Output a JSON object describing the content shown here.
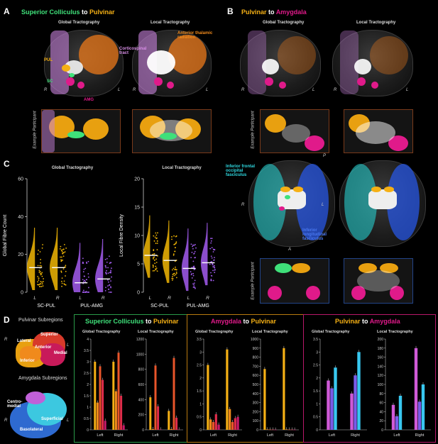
{
  "panelA": {
    "letter": "A",
    "title": {
      "part1": "Superior Colliculus",
      "to": " to ",
      "part2": "Pulvinar"
    },
    "sub_global": "Global Tractography",
    "sub_local": "Local Tractography",
    "ann_atr": "Anterior thalamic radiation",
    "ann_cst": "Corticospinal tract",
    "ann_pul": "PUL",
    "ann_sc": "SC",
    "ann_amg": "AMG",
    "R": "R",
    "L": "L",
    "example": "Example Participant"
  },
  "panelB": {
    "letter": "B",
    "title": {
      "part1": "Pulvinar",
      "to": " to ",
      "part2": "Amygdala"
    },
    "sub_global": "Global Tractography",
    "sub_local": "Local Tractography",
    "ann_ifof": "Inferior frontal occipital fasciculus",
    "ann_ilf": "Inferior longitudinal fasciculus",
    "P": "P",
    "A": "A",
    "R": "R",
    "L": "L",
    "example": "Example Participant"
  },
  "panelC": {
    "letter": "C",
    "colors": {
      "sc_pul": "#f2b705",
      "pul_amg": "#a35cf0"
    }
  },
  "panelD": {
    "letter": "D",
    "pulvinar_title": "Pulvinar Subregions",
    "pulvinar_labels": [
      "Superior",
      "Lateral",
      "Anterior",
      "Medial",
      "Inferior"
    ],
    "amygdala_title": "Amygdala Subregions",
    "amygdala_labels": [
      "Centro-medial",
      "Superficial",
      "Basolateral"
    ],
    "R": "R",
    "L": "L",
    "box1": {
      "part1": "Superior Colliculus",
      "to": " to ",
      "part2": "Pulvinar"
    },
    "box2": {
      "part1": "Amygdala",
      "to": " to ",
      "part2": "Pulvinar"
    },
    "box3": {
      "part1": "Pulvinar",
      "to": " to ",
      "part2": "Amygdala"
    },
    "sub_global": "Global Tractography",
    "sub_local": "Local Tractography"
  },
  "chart_data": [
    {
      "id": "c-global",
      "type": "scatter",
      "title": "Global Tractography",
      "ylabel": "Global Fibre Count",
      "ylim": [
        0,
        60
      ],
      "yticks": [
        0,
        20,
        40,
        60
      ],
      "categories": [
        "L",
        "R",
        "L",
        "R"
      ],
      "groups": [
        "SC-PUL",
        "PUL-AMG"
      ],
      "medians": [
        13,
        13,
        5,
        7
      ]
    },
    {
      "id": "c-local",
      "type": "scatter",
      "title": "Local Tractography",
      "ylabel": "Local Fibre Density",
      "ylim": [
        0,
        20
      ],
      "yticks": [
        0,
        5,
        10,
        15,
        20
      ],
      "categories": [
        "L",
        "R",
        "L",
        "R"
      ],
      "groups": [
        "SC-PUL",
        "PUL-AMG"
      ],
      "medians": [
        6.5,
        5.6,
        4.2,
        5.2
      ]
    },
    {
      "id": "d1g",
      "type": "bar",
      "title": "Global Tractography",
      "ylim": [
        0,
        4
      ],
      "yticks": [
        "0",
        "0.5",
        "1",
        "1.5",
        "2",
        "2.5",
        "3",
        "3.5",
        "4"
      ],
      "categories": [
        "Left",
        "Right"
      ],
      "series": [
        {
          "values": [
            3.0,
            3.0
          ],
          "color": "#f5b015"
        },
        {
          "values": [
            1.2,
            1.7
          ],
          "color": "#f08a1c"
        },
        {
          "values": [
            2.8,
            3.4
          ],
          "color": "#e8552a"
        },
        {
          "values": [
            2.2,
            1.5
          ],
          "color": "#e02c4a"
        },
        {
          "values": [
            0.4,
            0.2
          ],
          "color": "#c81a6a"
        }
      ]
    },
    {
      "id": "d1l",
      "type": "bar",
      "title": "Local Tractography",
      "ylim": [
        0,
        1200
      ],
      "yticks": [
        "0",
        "200",
        "400",
        "600",
        "800",
        "1000",
        "1200"
      ],
      "categories": [
        "Left",
        "Right"
      ],
      "series": [
        {
          "values": [
            430,
            250
          ],
          "color": "#f5b015"
        },
        {
          "values": [
            10,
            10
          ],
          "color": "#f08a1c"
        },
        {
          "values": [
            850,
            950
          ],
          "color": "#e8552a"
        },
        {
          "values": [
            310,
            160
          ],
          "color": "#e02c4a"
        },
        {
          "values": [
            5,
            5
          ],
          "color": "#c81a6a"
        }
      ]
    },
    {
      "id": "d2g",
      "type": "bar",
      "title": "Global Tractography",
      "ylim": [
        0,
        3.5
      ],
      "yticks": [
        "0",
        "0.5",
        "1",
        "1.5",
        "2",
        "2.5",
        "3",
        "3.5"
      ],
      "categories": [
        "Left",
        "Right"
      ],
      "series": [
        {
          "values": [
            2.5,
            3.1
          ],
          "color": "#f5b015"
        },
        {
          "values": [
            0.4,
            0.8
          ],
          "color": "#f08a1c"
        },
        {
          "values": [
            0.3,
            0.3
          ],
          "color": "#e8552a"
        },
        {
          "values": [
            0.6,
            0.45
          ],
          "color": "#e02c4a"
        },
        {
          "values": [
            0.2,
            0.5
          ],
          "color": "#c81a6a"
        }
      ]
    },
    {
      "id": "d2l",
      "type": "bar",
      "title": "Local Tractography",
      "ylim": [
        0,
        1000
      ],
      "yticks": [
        "0",
        "100",
        "200",
        "300",
        "400",
        "500",
        "600",
        "700",
        "800",
        "900",
        "1000"
      ],
      "categories": [
        "Left",
        "Right"
      ],
      "series": [
        {
          "values": [
            670,
            900
          ],
          "color": "#f5b015"
        },
        {
          "values": [
            5,
            5
          ],
          "color": "#f08a1c"
        },
        {
          "values": [
            3,
            3
          ],
          "color": "#e8552a"
        },
        {
          "values": [
            3,
            3
          ],
          "color": "#e02c4a"
        },
        {
          "values": [
            2,
            2
          ],
          "color": "#c81a6a"
        }
      ]
    },
    {
      "id": "d3g",
      "type": "bar",
      "title": "Global Tractography",
      "ylim": [
        0,
        3.5
      ],
      "yticks": [
        "0",
        "0.5",
        "1",
        "1.5",
        "2",
        "2.5",
        "3",
        "3.5"
      ],
      "categories": [
        "Left",
        "Right"
      ],
      "series": [
        {
          "values": [
            1.9,
            1.4
          ],
          "color": "#d05ad8"
        },
        {
          "values": [
            1.6,
            2.1
          ],
          "color": "#7a5ce8"
        },
        {
          "values": [
            2.4,
            3.0
          ],
          "color": "#38c8f0"
        }
      ]
    },
    {
      "id": "d3l",
      "type": "bar",
      "title": "Local Tractography",
      "ylim": [
        0,
        200
      ],
      "yticks": [
        "0",
        "20",
        "40",
        "60",
        "80",
        "100",
        "120",
        "140",
        "160",
        "180",
        "200"
      ],
      "categories": [
        "Left",
        "Right"
      ],
      "series": [
        {
          "values": [
            55,
            180
          ],
          "color": "#d05ad8"
        },
        {
          "values": [
            30,
            62
          ],
          "color": "#7a5ce8"
        },
        {
          "values": [
            75,
            100
          ],
          "color": "#38c8f0"
        }
      ]
    }
  ]
}
